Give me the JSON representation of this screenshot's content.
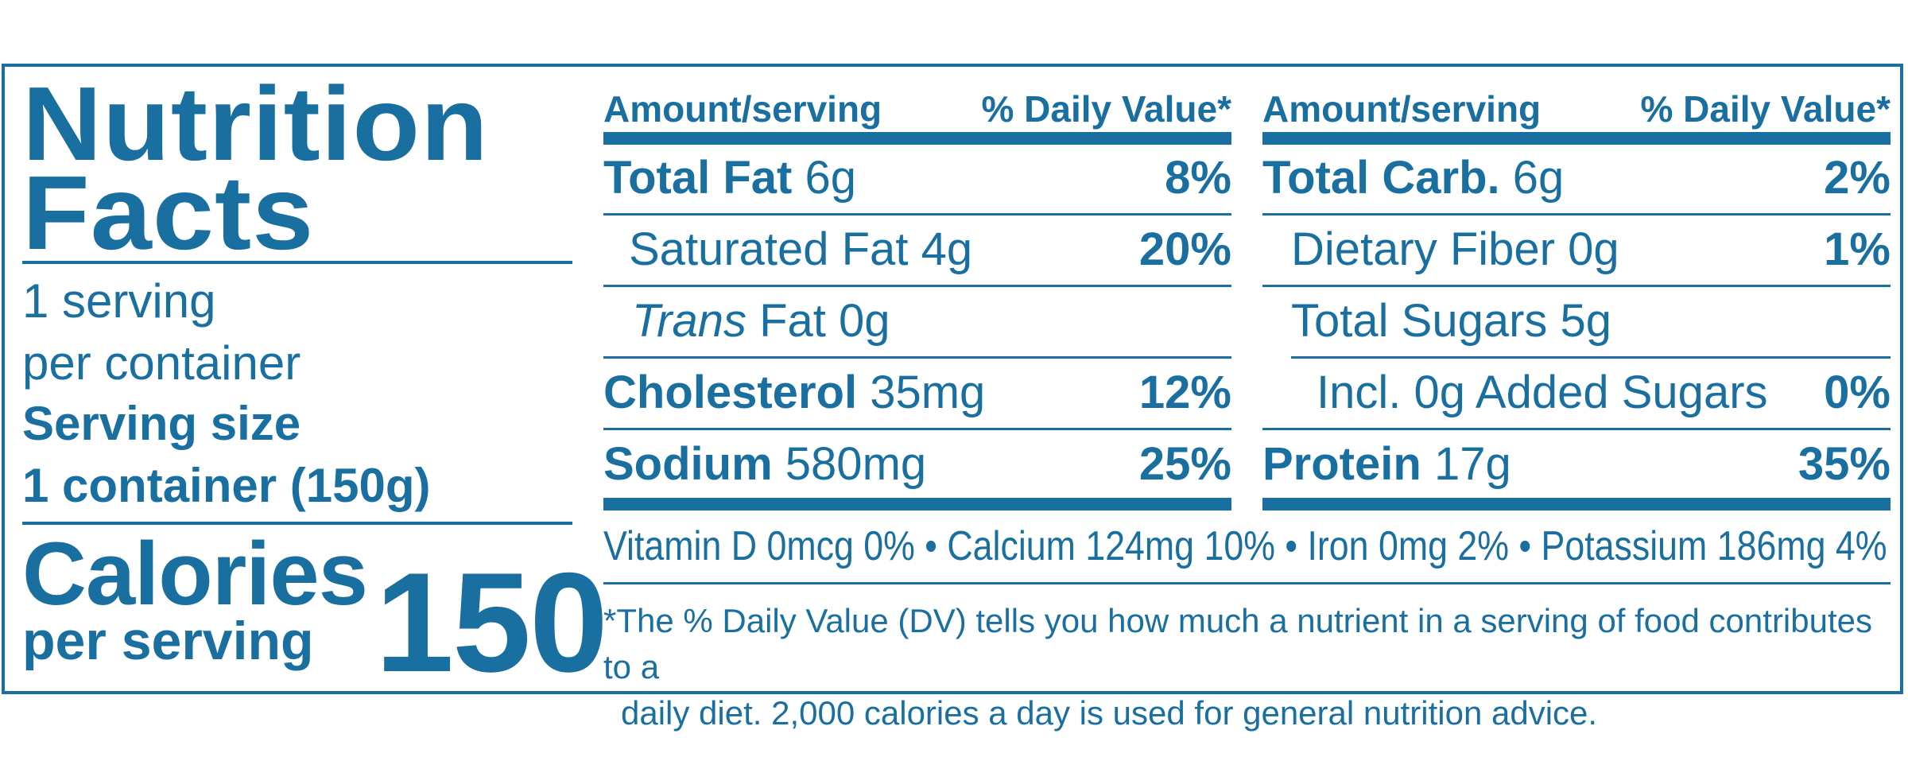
{
  "label": {
    "title_line1": "Nutrition",
    "title_line2": "Facts",
    "servings_line1": "1 serving",
    "servings_line2": "per container",
    "serving_size_label": "Serving size",
    "serving_size_value": "1 container (150g)",
    "calories_label": "Calories",
    "calories_sub": "per serving",
    "calories_value": "150",
    "left_column": {
      "header_amount": "Amount/serving",
      "header_dv": "% Daily Value*",
      "rows": [
        {
          "name": "Total Fat",
          "amount": "6g",
          "dv": "8%"
        },
        {
          "name": "Saturated Fat",
          "amount": "4g",
          "dv": "20%"
        },
        {
          "name_italic": "Trans",
          "name": "Fat",
          "amount": "0g",
          "dv": ""
        },
        {
          "name": "Cholesterol",
          "amount": "35mg",
          "dv": "12%"
        },
        {
          "name": "Sodium",
          "amount": "580mg",
          "dv": "25%"
        }
      ]
    },
    "right_column": {
      "header_amount": "Amount/serving",
      "header_dv": "% Daily Value*",
      "rows": [
        {
          "name": "Total Carb.",
          "amount": "6g",
          "dv": "2%"
        },
        {
          "name": "Dietary Fiber",
          "amount": "0g",
          "dv": "1%"
        },
        {
          "name": "Total Sugars",
          "amount": "5g",
          "dv": ""
        },
        {
          "name": "Incl. 0g Added Sugars",
          "amount": "",
          "dv": "0%"
        },
        {
          "name": "Protein",
          "amount": "17g",
          "dv": "35%"
        }
      ]
    },
    "vitamins": "Vitamin D 0mcg 0%  •  Calcium 124mg 10%  •  Iron 0mg  2%  •  Potassium 186mg  4%",
    "footnote_line1": "*The % Daily Value (DV) tells you how much a nutrient in a serving of food contributes to a",
    "footnote_line2": "daily diet. 2,000 calories a day is used for general nutrition advice.",
    "colors": {
      "ink": "#1a6fa1",
      "background": "#ffffff"
    }
  }
}
